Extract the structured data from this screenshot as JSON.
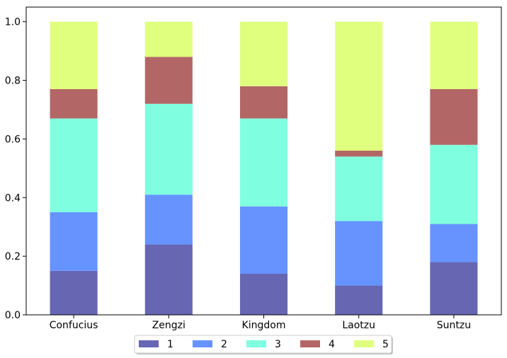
{
  "chart_data": {
    "type": "bar",
    "stacked": true,
    "title": "",
    "xlabel": "",
    "ylabel": "",
    "categories": [
      "Confucius",
      "Zengzi",
      "Kingdom",
      "Laotzu",
      "Suntzu"
    ],
    "ylim": [
      0,
      1.05
    ],
    "yticks": [
      "0.0",
      "0.2",
      "0.4",
      "0.6",
      "0.8",
      "1.0"
    ],
    "grid": false,
    "legend_position": "bottom-center",
    "series": [
      {
        "name": "1",
        "color": "#6666b3",
        "values": [
          0.15,
          0.24,
          0.14,
          0.1,
          0.18
        ]
      },
      {
        "name": "2",
        "color": "#6693ff",
        "values": [
          0.2,
          0.17,
          0.23,
          0.22,
          0.13
        ]
      },
      {
        "name": "3",
        "color": "#7fffdf",
        "values": [
          0.32,
          0.31,
          0.3,
          0.22,
          0.27
        ]
      },
      {
        "name": "4",
        "color": "#b36666",
        "values": [
          0.1,
          0.16,
          0.11,
          0.02,
          0.19
        ]
      },
      {
        "name": "5",
        "color": "#e0ff7f",
        "values": [
          0.23,
          0.12,
          0.22,
          0.44,
          0.23
        ]
      }
    ]
  }
}
